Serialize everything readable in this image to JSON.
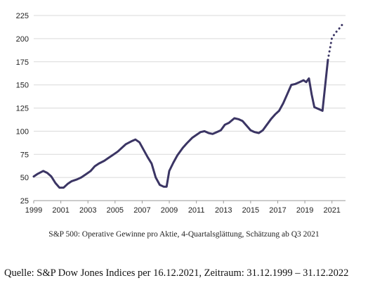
{
  "chart_data": {
    "type": "line",
    "caption": "S&P 500: Operative Gewinne pro Aktie, 4-Quartalsglättung, Schätzung ab Q3 2021",
    "xlim": [
      1999,
      2022
    ],
    "ylim": [
      25,
      225
    ],
    "x_ticks": [
      "1999",
      "2001",
      "2003",
      "2005",
      "2007",
      "2009",
      "2011",
      "2013",
      "2015",
      "2017",
      "2019",
      "2021"
    ],
    "y_ticks": [
      "25",
      "50",
      "75",
      "100",
      "125",
      "150",
      "175",
      "200",
      "225"
    ],
    "grid": "horizontal",
    "line_color": "#3b3564",
    "series": [
      {
        "style": "solid",
        "points": [
          [
            1999.0,
            51
          ],
          [
            1999.3,
            54
          ],
          [
            1999.7,
            57
          ],
          [
            2000.0,
            55
          ],
          [
            2000.3,
            51
          ],
          [
            2000.6,
            44
          ],
          [
            2000.9,
            39
          ],
          [
            2001.2,
            39
          ],
          [
            2001.5,
            43
          ],
          [
            2001.8,
            46
          ],
          [
            2002.2,
            48
          ],
          [
            2002.5,
            50
          ],
          [
            2002.8,
            53
          ],
          [
            2003.2,
            57
          ],
          [
            2003.5,
            62
          ],
          [
            2003.8,
            65
          ],
          [
            2004.2,
            68
          ],
          [
            2004.5,
            71
          ],
          [
            2004.8,
            74
          ],
          [
            2005.2,
            78
          ],
          [
            2005.5,
            82
          ],
          [
            2005.8,
            86
          ],
          [
            2006.2,
            89
          ],
          [
            2006.5,
            91
          ],
          [
            2006.8,
            88
          ],
          [
            2007.1,
            80
          ],
          [
            2007.4,
            72
          ],
          [
            2007.7,
            65
          ],
          [
            2008.0,
            50
          ],
          [
            2008.3,
            42
          ],
          [
            2008.6,
            40
          ],
          [
            2008.8,
            40
          ],
          [
            2009.0,
            57
          ],
          [
            2009.3,
            66
          ],
          [
            2009.6,
            74
          ],
          [
            2010.0,
            82
          ],
          [
            2010.3,
            87
          ],
          [
            2010.7,
            93
          ],
          [
            2011.0,
            96
          ],
          [
            2011.3,
            99
          ],
          [
            2011.6,
            100
          ],
          [
            2011.9,
            98
          ],
          [
            2012.2,
            97
          ],
          [
            2012.5,
            99
          ],
          [
            2012.8,
            101
          ],
          [
            2013.1,
            107
          ],
          [
            2013.4,
            109
          ],
          [
            2013.8,
            114
          ],
          [
            2014.1,
            113
          ],
          [
            2014.4,
            111
          ],
          [
            2014.7,
            106
          ],
          [
            2015.0,
            101
          ],
          [
            2015.3,
            99
          ],
          [
            2015.6,
            98
          ],
          [
            2015.9,
            101
          ],
          [
            2016.2,
            107
          ],
          [
            2016.5,
            113
          ],
          [
            2016.8,
            118
          ],
          [
            2017.1,
            122
          ],
          [
            2017.4,
            130
          ],
          [
            2017.7,
            140
          ],
          [
            2018.0,
            150
          ],
          [
            2018.3,
            151
          ],
          [
            2018.6,
            153
          ],
          [
            2018.9,
            155
          ],
          [
            2019.1,
            153
          ],
          [
            2019.3,
            157
          ],
          [
            2019.5,
            140
          ],
          [
            2019.7,
            126
          ],
          [
            2020.0,
            124
          ],
          [
            2020.3,
            122
          ],
          [
            2020.7,
            177
          ]
        ]
      },
      {
        "style": "dotted",
        "points": [
          [
            2020.7,
            177
          ],
          [
            2021.0,
            201
          ],
          [
            2021.3,
            207
          ],
          [
            2021.6,
            212
          ],
          [
            2021.9,
            218
          ]
        ]
      }
    ]
  },
  "source_text": "Quelle: S&P Dow Jones Indices per 16.12.2021, Zeitraum: 31.12.1999 – 31.12.2022"
}
